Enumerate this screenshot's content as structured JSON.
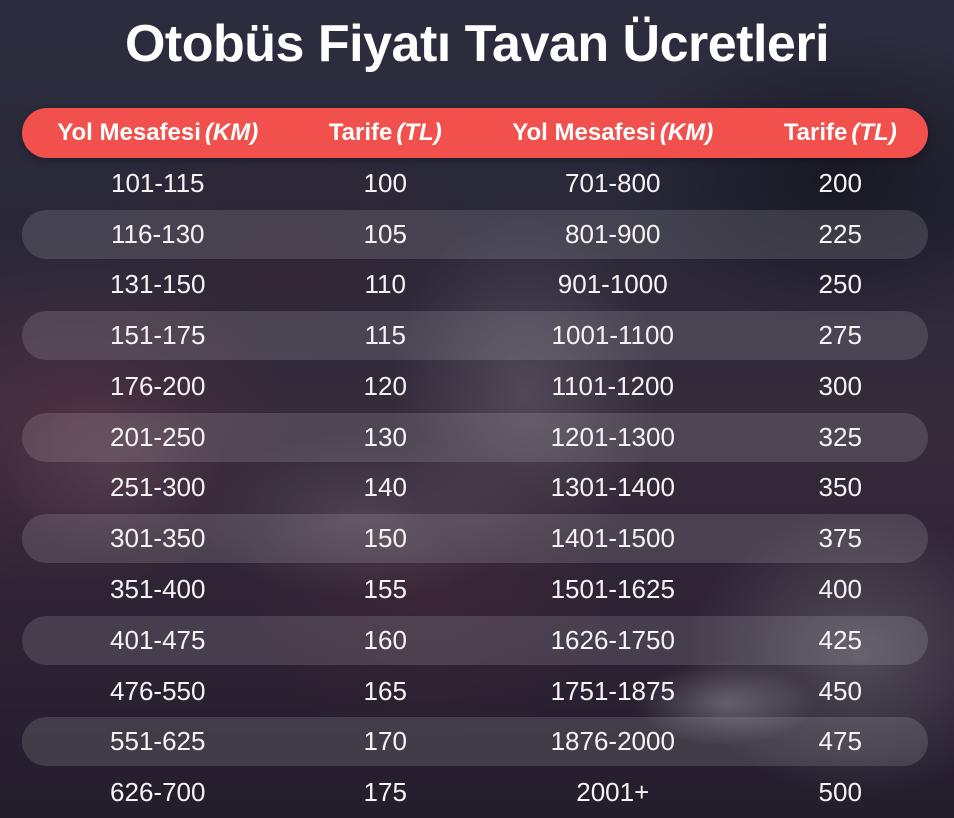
{
  "title": "Otobüs Fiyatı Tavan Ücretleri",
  "colors": {
    "header_bg": "#f2504c",
    "row_stripe": "rgba(255,255,255,0.13)",
    "page_base": "#2b2c3d",
    "text": "#ffffff",
    "data_text": "#f6f2f5"
  },
  "header": {
    "columns": [
      {
        "label": "Yol Mesafesi",
        "unit": "(KM)"
      },
      {
        "label": "Tarife",
        "unit": "(TL)"
      },
      {
        "label": "Yol Mesafesi",
        "unit": "(KM)"
      },
      {
        "label": "Tarife",
        "unit": "(TL)"
      }
    ]
  },
  "chart_data": {
    "type": "table",
    "title": "Otobüs Fiyatı Tavan Ücretleri",
    "columns": [
      "Yol Mesafesi (KM)",
      "Tarife (TL)",
      "Yol Mesafesi (KM)",
      "Tarife (TL)"
    ],
    "rows": [
      [
        "101-115",
        100,
        "701-800",
        200
      ],
      [
        "116-130",
        105,
        "801-900",
        225
      ],
      [
        "131-150",
        110,
        "901-1000",
        250
      ],
      [
        "151-175",
        115,
        "1001-1100",
        275
      ],
      [
        "176-200",
        120,
        "1101-1200",
        300
      ],
      [
        "201-250",
        130,
        "1201-1300",
        325
      ],
      [
        "251-300",
        140,
        "1301-1400",
        350
      ],
      [
        "301-350",
        150,
        "1401-1500",
        375
      ],
      [
        "351-400",
        155,
        "1501-1625",
        400
      ],
      [
        "401-475",
        160,
        "1626-1750",
        425
      ],
      [
        "476-550",
        165,
        "1751-1875",
        450
      ],
      [
        "551-625",
        170,
        "1876-2000",
        475
      ],
      [
        "626-700",
        175,
        "2001+",
        500
      ]
    ],
    "layout": {
      "striped_rows": "even",
      "legend": "none",
      "grid": "off"
    }
  }
}
